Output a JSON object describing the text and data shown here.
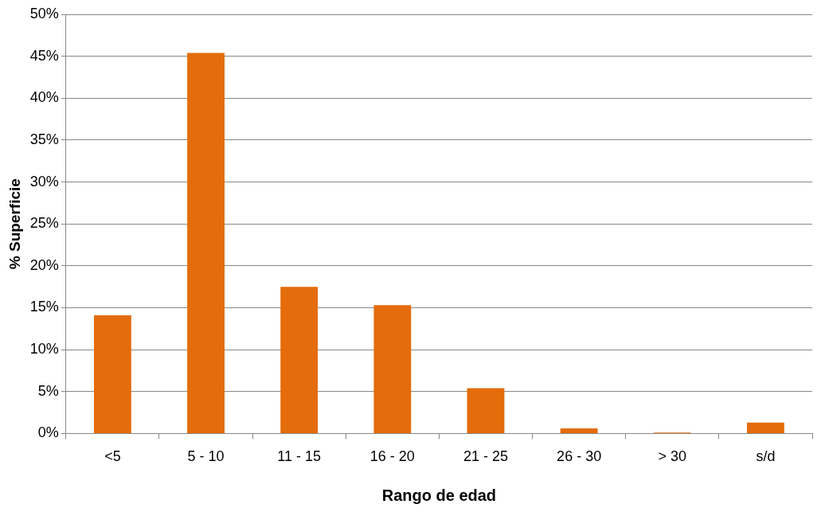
{
  "chart_data": {
    "type": "bar",
    "xlabel": "Rango de edad",
    "ylabel": "% Superficie",
    "categories": [
      "<5",
      "5 - 10",
      "11 - 15",
      "16 - 20",
      "21 - 25",
      "26 - 30",
      "> 30",
      "s/d"
    ],
    "values": [
      14.1,
      45.4,
      17.5,
      15.3,
      5.4,
      0.6,
      0.1,
      1.3
    ],
    "color": "#e46c0a",
    "ylim": [
      0,
      50
    ],
    "yticks": [
      {
        "value": 0,
        "label": "0%"
      },
      {
        "value": 5,
        "label": "5%"
      },
      {
        "value": 10,
        "label": "10%"
      },
      {
        "value": 15,
        "label": "15%"
      },
      {
        "value": 20,
        "label": "20%"
      },
      {
        "value": 25,
        "label": "25%"
      },
      {
        "value": 30,
        "label": "30%"
      },
      {
        "value": 35,
        "label": "35%"
      },
      {
        "value": 40,
        "label": "40%"
      },
      {
        "value": 45,
        "label": "45%"
      },
      {
        "value": 50,
        "label": "50%"
      }
    ],
    "grid": "y",
    "legend": false
  }
}
